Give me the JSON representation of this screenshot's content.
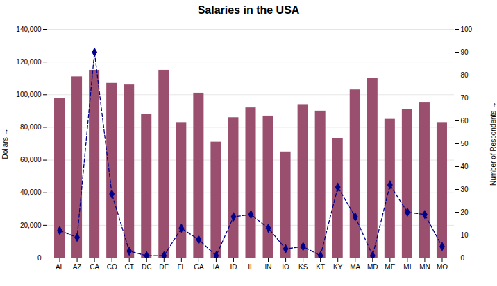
{
  "chart_data": {
    "type": "bar",
    "title": "Salaries in the USA",
    "categories": [
      "AL",
      "AZ",
      "CA",
      "CO",
      "CT",
      "DC",
      "DE",
      "FL",
      "GA",
      "IA",
      "ID",
      "IL",
      "IN",
      "IO",
      "KS",
      "KT",
      "KY",
      "MA",
      "MD",
      "ME",
      "MI",
      "MN",
      "MO"
    ],
    "series": [
      {
        "type": "bar",
        "color": "#9b4f6e",
        "values": [
          98000,
          111000,
          115000,
          107000,
          106000,
          88000,
          115000,
          83000,
          101000,
          71000,
          86000,
          92000,
          87000,
          65000,
          94000,
          90000,
          73000,
          103000,
          110000,
          85000,
          91000,
          95000,
          83000
        ]
      },
      {
        "type": "line",
        "axis": "y2",
        "color": "#00008b",
        "line_style": "dashed",
        "marker": "diamond",
        "values": [
          12,
          9,
          90,
          28,
          3,
          1,
          1,
          13,
          8,
          1,
          18,
          19,
          13,
          4,
          5,
          1,
          31,
          18,
          1,
          32,
          20,
          19,
          5
        ]
      }
    ],
    "ylabel": "Dollars",
    "y2label": "Number of Respondents",
    "ylim": [
      0,
      140000
    ],
    "yticks": [
      0,
      {
        "value": 20000,
        "label": "20,000"
      },
      {
        "value": 40000,
        "label": "40,000"
      },
      {
        "value": 60000,
        "label": "60,000"
      },
      {
        "value": 80000,
        "label": "80,000"
      },
      {
        "value": 100000,
        "label": "100,000"
      },
      {
        "value": 120000,
        "label": "120,000"
      },
      {
        "value": 140000,
        "label": "140,000"
      }
    ],
    "y2lim": [
      0,
      100
    ],
    "y2ticks": [
      0,
      10,
      20,
      30,
      40,
      50,
      60,
      70,
      80,
      90,
      100
    ],
    "grid": true
  }
}
